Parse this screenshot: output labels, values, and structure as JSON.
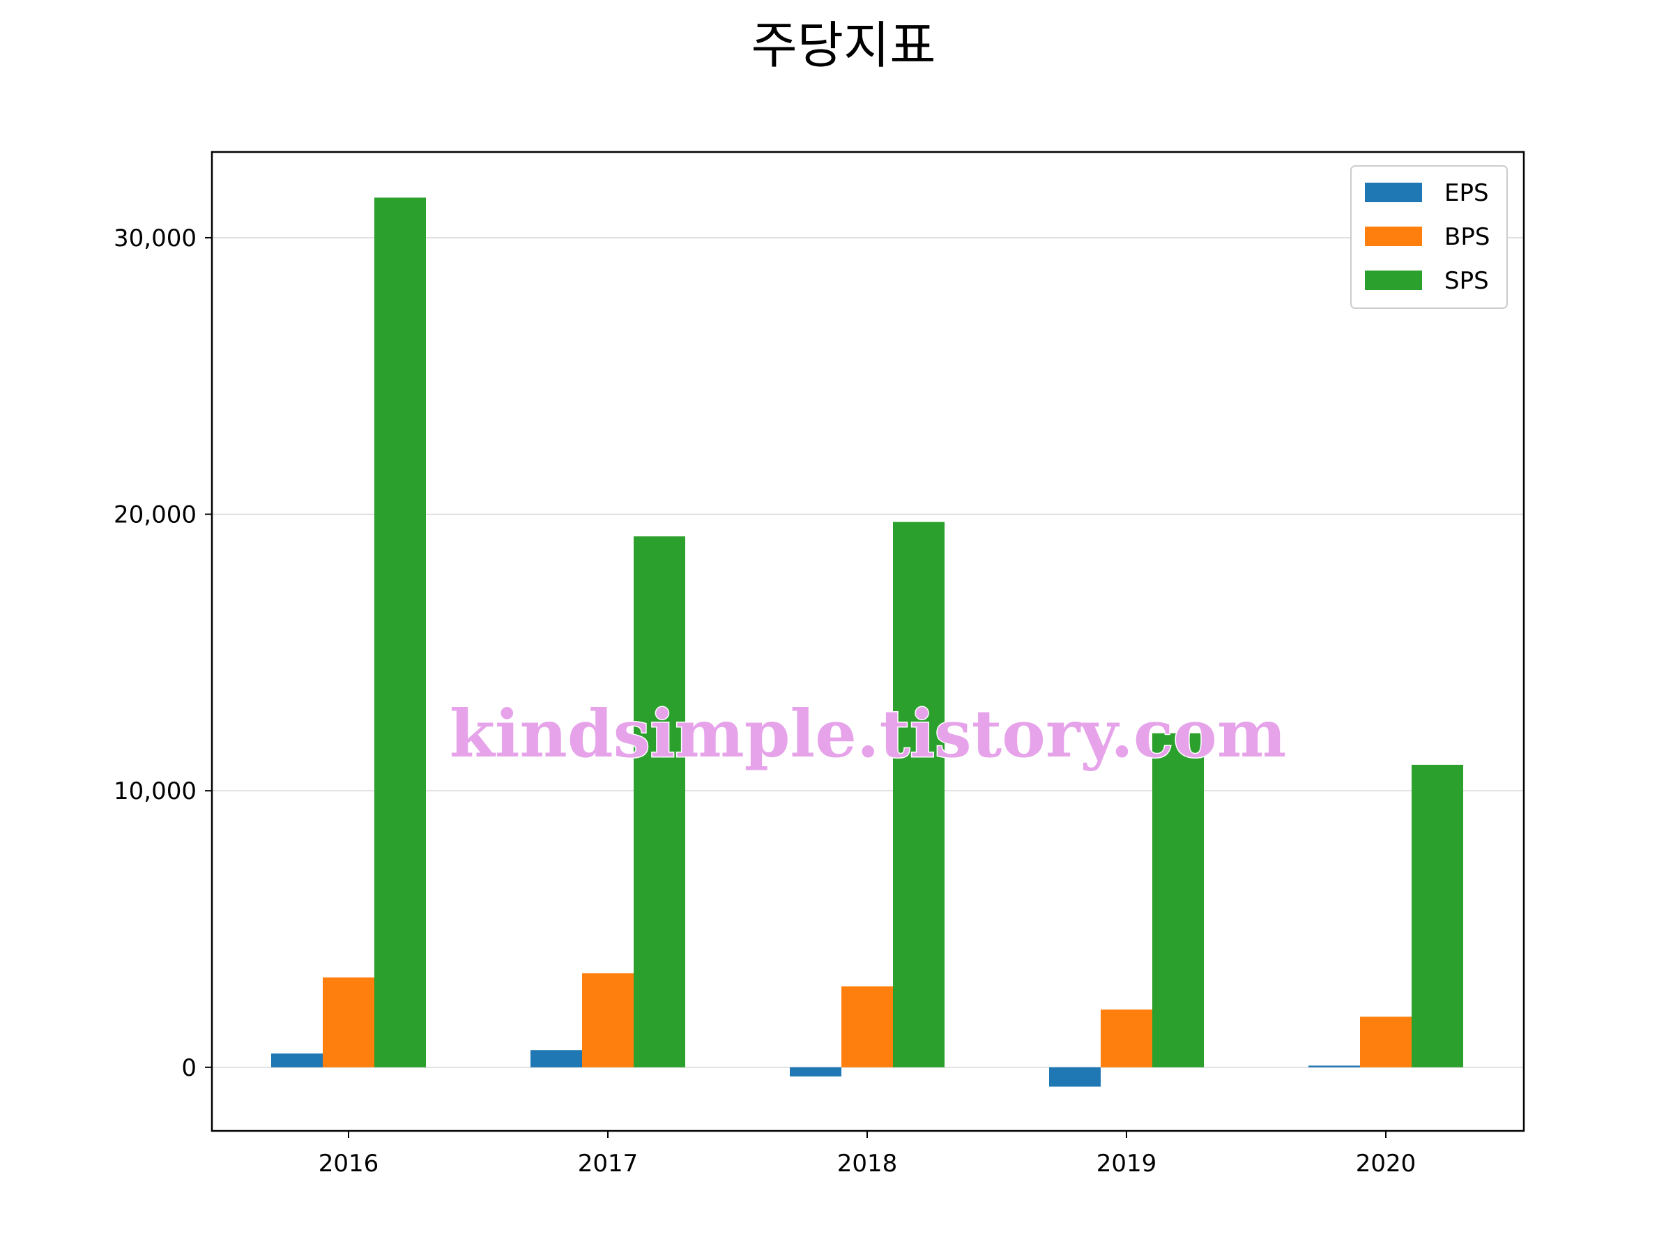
{
  "chart_data": {
    "type": "bar",
    "title": "주당지표",
    "xlabel": "",
    "ylabel": "",
    "categories": [
      "2016",
      "2017",
      "2018",
      "2019",
      "2020"
    ],
    "series": [
      {
        "name": "EPS",
        "color": "#1f77b4",
        "values": [
          500,
          620,
          -330,
          -700,
          60
        ]
      },
      {
        "name": "BPS",
        "color": "#ff7f0e",
        "values": [
          3250,
          3400,
          2930,
          2090,
          1830
        ]
      },
      {
        "name": "SPS",
        "color": "#2ca02c",
        "values": [
          31450,
          19200,
          19720,
          12080,
          10940
        ]
      }
    ],
    "ylim": [
      -2300,
      33100
    ],
    "yticks": [
      0,
      10000,
      20000,
      30000
    ],
    "ytick_labels": [
      "0",
      "10,000",
      "20,000",
      "30,000"
    ],
    "grid": "horizontal",
    "legend_position": "top-right",
    "watermark": "kindsimple.tistory.com"
  }
}
